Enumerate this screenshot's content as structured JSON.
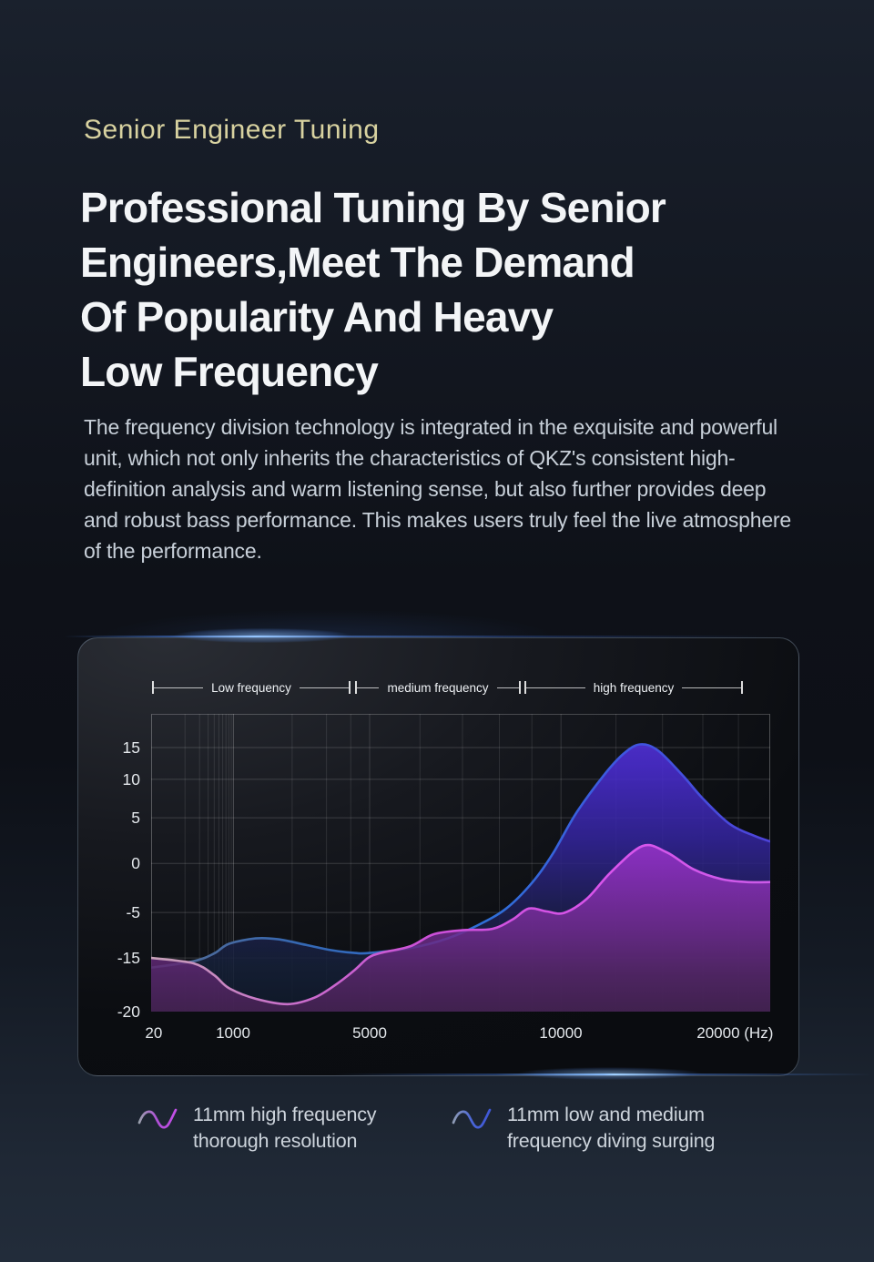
{
  "hero": {
    "eyebrow": "Senior Engineer Tuning",
    "headline_lines": [
      "Professional Tuning By Senior",
      "Engineers,Meet The Demand",
      "Of Popularity And Heavy",
      "Low Frequency"
    ],
    "paragraph": "The frequency division technology is integrated in the exquisite and powerful unit, which not only inherits the characteristics of QKZ's consistent high-definition analysis and warm listening sense, but also further provides deep and robust bass performance. This makes users truly feel the live atmosphere of the performance."
  },
  "colors": {
    "eyebrow_text": "#d8d2a0",
    "headline_text": "#f3f5f7",
    "body_text": "#c8d0d9",
    "blue_accent": "#2f6fd8",
    "magenta_accent": "#cc4fd8",
    "flare_blue": "#8cc0ff"
  },
  "chart_data": {
    "type": "area",
    "title": "",
    "x_axis": {
      "unit": "Hz",
      "scale": "custom-log",
      "range": [
        20,
        20000
      ],
      "anchors": [
        [
          20,
          0
        ],
        [
          1000,
          0.133
        ],
        [
          5000,
          0.353
        ],
        [
          10000,
          0.662
        ],
        [
          20000,
          1
        ]
      ],
      "ticks": [
        {
          "label": "20",
          "freq": 20
        },
        {
          "label": "1000",
          "freq": 1000
        },
        {
          "label": "5000",
          "freq": 5000
        },
        {
          "label": "10000",
          "freq": 10000
        },
        {
          "label": "20000 (Hz)",
          "freq": 20000
        }
      ],
      "gridline_freqs": [
        100,
        200,
        300,
        400,
        500,
        600,
        700,
        800,
        900,
        1000,
        2000,
        3000,
        4000,
        6000,
        7000,
        8000,
        9000,
        12000,
        14000,
        16000,
        18000
      ]
    },
    "y_axis": {
      "unit": "dB",
      "ticks": [
        15,
        10,
        5,
        0,
        -5,
        -15,
        -20
      ],
      "anchors": [
        [
          15,
          0.113
        ],
        [
          10,
          0.22
        ],
        [
          5,
          0.349
        ],
        [
          0,
          0.502
        ],
        [
          -5,
          0.667
        ],
        [
          -15,
          0.82
        ],
        [
          -20,
          1
        ]
      ]
    },
    "bands": [
      {
        "label": "Low frequency",
        "from": 0.002,
        "to": 0.322
      },
      {
        "label": "medium frequency",
        "from": 0.329,
        "to": 0.597
      },
      {
        "label": "high frequency",
        "from": 0.603,
        "to": 0.956
      }
    ],
    "series": [
      {
        "name": "11mm low and medium frequency diving surging",
        "points": [
          [
            20,
            -15.9
          ],
          [
            150,
            -15.3
          ],
          [
            400,
            -14.0
          ],
          [
            800,
            -11.9
          ],
          [
            1300,
            -10.7
          ],
          [
            1700,
            -10.9
          ],
          [
            2400,
            -12.2
          ],
          [
            3200,
            -13.3
          ],
          [
            4200,
            -13.9
          ],
          [
            5000,
            -13.9
          ],
          [
            5800,
            -12.8
          ],
          [
            6600,
            -10.8
          ],
          [
            7400,
            -7.8
          ],
          [
            8200,
            -4.6
          ],
          [
            9000,
            -2.0
          ],
          [
            9700,
            1.0
          ],
          [
            10500,
            5.5
          ],
          [
            11500,
            10.5
          ],
          [
            12300,
            14.0
          ],
          [
            13000,
            15.5
          ],
          [
            13800,
            14.5
          ],
          [
            15000,
            10.5
          ],
          [
            16000,
            7.5
          ],
          [
            17500,
            4.3
          ],
          [
            19000,
            3.0
          ],
          [
            20000,
            2.4
          ]
        ],
        "stroke_stops": [
          [
            0,
            "#566b90"
          ],
          [
            0.25,
            "#3468b4"
          ],
          [
            0.55,
            "#2f6fd8"
          ],
          [
            0.78,
            "#3f55e0"
          ],
          [
            1,
            "#4d43d8"
          ]
        ],
        "fill_stops": [
          [
            0,
            "#5a35e8",
            0.95
          ],
          [
            0.18,
            "#4a2cd0",
            0.95
          ],
          [
            0.42,
            "#33249c",
            0.93
          ],
          [
            0.66,
            "#1e1f55",
            0.92
          ],
          [
            0.85,
            "#152038",
            0.9
          ],
          [
            1,
            "#101a2c",
            0.88
          ]
        ]
      },
      {
        "name": "11mm high frequency thorough resolution",
        "points": [
          [
            20,
            -15.0
          ],
          [
            150,
            -15.5
          ],
          [
            400,
            -16.6
          ],
          [
            800,
            -17.8
          ],
          [
            1300,
            -18.8
          ],
          [
            1900,
            -19.3
          ],
          [
            2600,
            -18.7
          ],
          [
            3400,
            -17.4
          ],
          [
            4200,
            -16.1
          ],
          [
            4900,
            -15.0
          ],
          [
            5200,
            -13.9
          ],
          [
            5800,
            -12.4
          ],
          [
            6300,
            -9.8
          ],
          [
            7000,
            -8.9
          ],
          [
            7800,
            -8.6
          ],
          [
            8400,
            -6.5
          ],
          [
            8900,
            -4.6
          ],
          [
            9500,
            -4.9
          ],
          [
            10100,
            -5.1
          ],
          [
            10900,
            -3.6
          ],
          [
            11800,
            -0.9
          ],
          [
            13100,
            1.9
          ],
          [
            14200,
            1.2
          ],
          [
            15500,
            -0.6
          ],
          [
            17000,
            -1.6
          ],
          [
            18500,
            -1.9
          ],
          [
            20000,
            -1.9
          ]
        ],
        "stroke_stops": [
          [
            0,
            "#c7a2b8"
          ],
          [
            0.2,
            "#c873c8"
          ],
          [
            0.45,
            "#cc4fd8"
          ],
          [
            0.75,
            "#d955ec"
          ],
          [
            1,
            "#cb5ae8"
          ]
        ],
        "fill_stops": [
          [
            0,
            "#d055ff",
            0.95
          ],
          [
            0.3,
            "#ab3ade",
            0.95
          ],
          [
            0.5,
            "#9030c0",
            0.93
          ],
          [
            0.72,
            "#712b90",
            0.92
          ],
          [
            0.88,
            "#58266a",
            0.9
          ],
          [
            1,
            "#4a2356",
            0.9
          ]
        ]
      }
    ],
    "grid": true,
    "legend_position": "bottom"
  },
  "legend": {
    "items": [
      {
        "icon": "sine-wave-icon",
        "line1": "11mm high frequency",
        "line2": "thorough resolution",
        "gradient": [
          "#9aa1ad",
          "#b04fd8",
          "#c44fe8"
        ]
      },
      {
        "icon": "sine-wave-icon",
        "line1": "11mm low and medium",
        "line2": "frequency diving surging",
        "gradient": [
          "#8f9cb5",
          "#4a66d8",
          "#3f57d6"
        ]
      }
    ]
  }
}
